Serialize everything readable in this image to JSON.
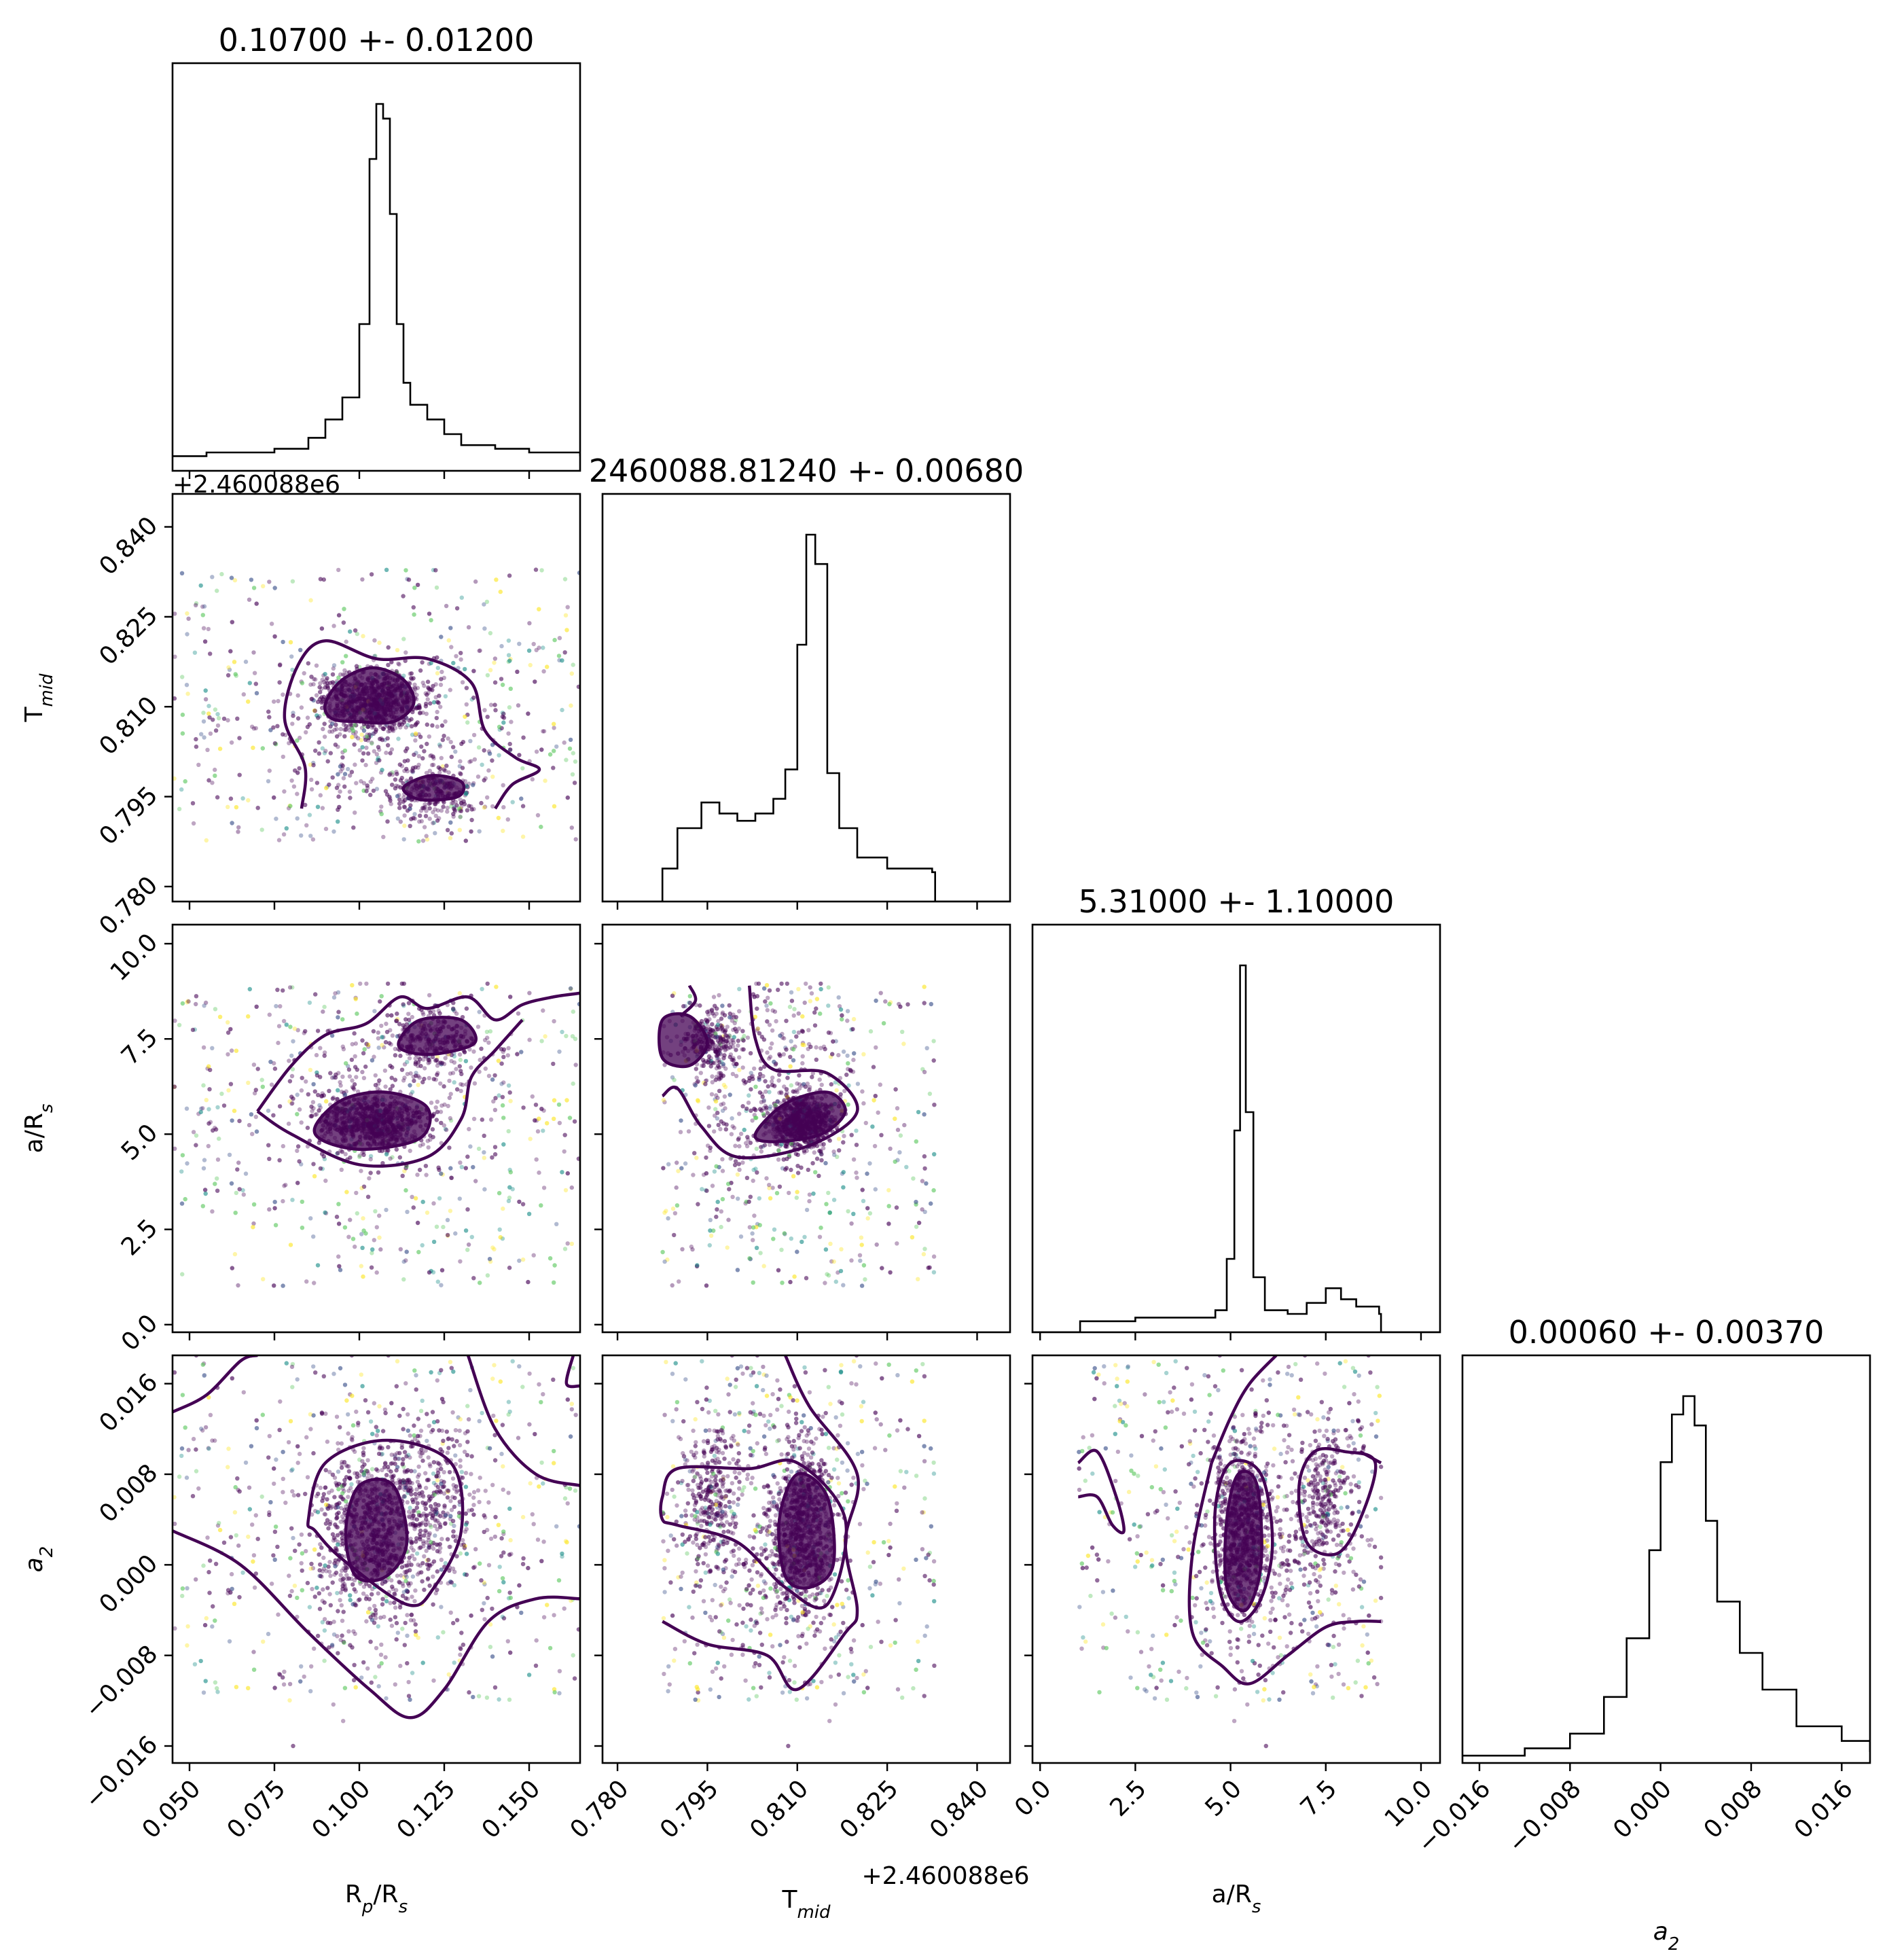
{
  "chart_data": {
    "type": "scatter",
    "subtype": "corner-plot",
    "parameters": [
      {
        "key": "rp",
        "label": "R<sub>p</sub>/R<sub>s</sub>",
        "label_base": "R",
        "label_sub": "p",
        "label_tail": "/R",
        "label_tail_sub": "s",
        "range": [
          0.045,
          0.165
        ],
        "ticks": [
          "0.050",
          "0.075",
          "0.100",
          "0.125",
          "0.150"
        ],
        "title": "0.10700 +- 0.01200",
        "mean": 0.107,
        "std": 0.012
      },
      {
        "key": "tmid",
        "label_base": "T",
        "label_sub": "mid",
        "range": [
          0.7775,
          0.8455
        ],
        "ticks": [
          "0.780",
          "0.795",
          "0.810",
          "0.825",
          "0.840"
        ],
        "offset": "+2.460088e6",
        "title": "2460088.81240 +- 0.00680",
        "mean": 2460088.8124,
        "std": 0.0068
      },
      {
        "key": "ars",
        "label_base": "a/R",
        "label_sub": "s",
        "range": [
          -0.2,
          10.5
        ],
        "ticks": [
          "0.0",
          "2.5",
          "5.0",
          "7.5",
          "10.0"
        ],
        "title": "5.31000 +- 1.10000",
        "mean": 5.31,
        "std": 1.1
      },
      {
        "key": "a2",
        "label_base": "a",
        "label_sub": "2",
        "range": [
          -0.0175,
          0.0185
        ],
        "ticks": [
          "−0.016",
          "−0.008",
          "0.000",
          "0.008",
          "0.016"
        ],
        "title": "0.00060 +- 0.00370",
        "mean": 0.0006,
        "std": 0.0037
      }
    ],
    "histograms": {
      "rp": {
        "x": [
          0.045,
          0.055,
          0.065,
          0.075,
          0.085,
          0.09,
          0.095,
          0.1,
          0.103,
          0.105,
          0.107,
          0.109,
          0.111,
          0.113,
          0.115,
          0.12,
          0.125,
          0.13,
          0.14,
          0.15,
          0.165
        ],
        "y": [
          0.04,
          0.05,
          0.05,
          0.06,
          0.09,
          0.14,
          0.2,
          0.4,
          0.85,
          1.0,
          0.96,
          0.7,
          0.4,
          0.24,
          0.18,
          0.14,
          0.1,
          0.07,
          0.06,
          0.05,
          0.04
        ]
      },
      "tmid": {
        "x": [
          0.7775,
          0.787,
          0.7875,
          0.79,
          0.794,
          0.797,
          0.8,
          0.803,
          0.806,
          0.808,
          0.81,
          0.8115,
          0.813,
          0.815,
          0.817,
          0.82,
          0.825,
          0.83,
          0.8325,
          0.833,
          0.8455
        ],
        "y": [
          0,
          0,
          0.09,
          0.2,
          0.27,
          0.24,
          0.22,
          0.24,
          0.28,
          0.36,
          0.7,
          1.0,
          0.92,
          0.35,
          0.2,
          0.12,
          0.09,
          0.09,
          0.08,
          0,
          0
        ]
      },
      "ars": {
        "x": [
          -0.2,
          1.0,
          1.05,
          2.5,
          4.0,
          4.6,
          4.9,
          5.1,
          5.25,
          5.4,
          5.6,
          5.9,
          6.5,
          7.0,
          7.5,
          7.9,
          8.3,
          8.9,
          8.95,
          10.5
        ],
        "y": [
          0,
          0,
          0.03,
          0.04,
          0.04,
          0.06,
          0.2,
          0.55,
          1.0,
          0.6,
          0.15,
          0.06,
          0.05,
          0.08,
          0.12,
          0.09,
          0.07,
          0.05,
          0,
          0
        ]
      },
      "a2": {
        "x": [
          -0.0175,
          -0.012,
          -0.008,
          -0.005,
          -0.003,
          -0.001,
          0.0,
          0.001,
          0.002,
          0.003,
          0.004,
          0.005,
          0.007,
          0.009,
          0.012,
          0.016,
          0.0185
        ],
        "y": [
          0.02,
          0.04,
          0.08,
          0.18,
          0.34,
          0.58,
          0.82,
          0.95,
          1.0,
          0.92,
          0.66,
          0.44,
          0.3,
          0.2,
          0.1,
          0.06,
          0.03
        ]
      }
    },
    "scatter_colors": [
      "#440154",
      "#440154",
      "#3b528b",
      "#21918c",
      "#5ec962",
      "#fde725"
    ],
    "contour_color": "#440154"
  }
}
